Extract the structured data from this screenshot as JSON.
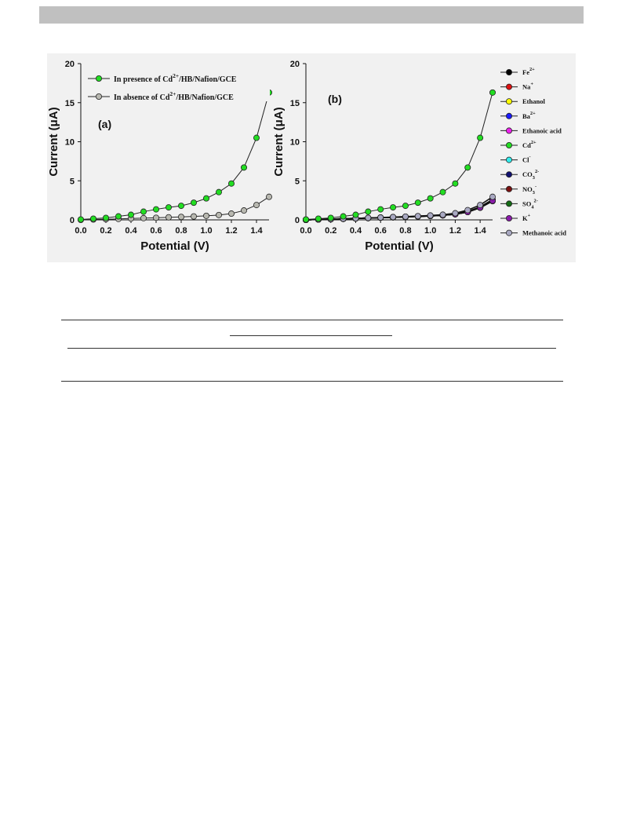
{
  "chart_data": [
    {
      "type": "line",
      "panel_label": "(a)",
      "xlabel": "Potential (V)",
      "ylabel": "Current (μA)",
      "xlim": [
        0,
        1.5
      ],
      "ylim": [
        0,
        20
      ],
      "xticks": [
        "0.0",
        "0.2",
        "0.4",
        "0.6",
        "0.8",
        "1.0",
        "1.2",
        "1.4"
      ],
      "yticks": [
        "0",
        "5",
        "10",
        "15",
        "20"
      ],
      "grid": false,
      "legend_position": "top-left",
      "x": [
        0,
        0.1,
        0.2,
        0.3,
        0.4,
        0.5,
        0.6,
        0.7,
        0.8,
        0.9,
        1.0,
        1.1,
        1.2,
        1.3,
        1.4,
        1.5
      ],
      "series": [
        {
          "name": "In presence of Cd2+/HB/Nafion/GCE",
          "name_parts": {
            "pre": "In presence of Cd",
            "sup": "2+",
            "post": "/HB/Nafion/GCE"
          },
          "color": "#22dd22",
          "values": [
            0.05,
            0.15,
            0.25,
            0.45,
            0.65,
            1.05,
            1.35,
            1.6,
            1.8,
            2.2,
            2.75,
            3.55,
            4.65,
            6.7,
            10.5,
            16.3
          ]
        },
        {
          "name": "In absence of Cd2+/HB/Nafion/GCE",
          "name_parts": {
            "pre": "In absence of Cd",
            "sup": "2+",
            "post": "/HB/Nafion/GCE"
          },
          "color": "#b8b8b0",
          "values": [
            0.0,
            0.05,
            0.08,
            0.12,
            0.17,
            0.22,
            0.27,
            0.33,
            0.38,
            0.44,
            0.52,
            0.62,
            0.8,
            1.2,
            1.9,
            2.95
          ]
        }
      ]
    },
    {
      "type": "line",
      "panel_label": "(b)",
      "xlabel": "Potential (V)",
      "ylabel": "Current (μA)",
      "xlim": [
        0,
        1.5
      ],
      "ylim": [
        0,
        20
      ],
      "xticks": [
        "0.0",
        "0.2",
        "0.4",
        "0.6",
        "0.8",
        "1.0",
        "1.2",
        "1.4"
      ],
      "yticks": [
        "0",
        "5",
        "10",
        "15",
        "20"
      ],
      "grid": false,
      "legend_position": "right",
      "x": [
        0,
        0.1,
        0.2,
        0.3,
        0.4,
        0.5,
        0.6,
        0.7,
        0.8,
        0.9,
        1.0,
        1.1,
        1.2,
        1.3,
        1.4,
        1.5
      ],
      "series": [
        {
          "name": "Fe2+",
          "name_parts": {
            "pre": "Fe",
            "sup": "2+"
          },
          "color": "#000000",
          "values": [
            0.0,
            0.06,
            0.1,
            0.14,
            0.19,
            0.24,
            0.29,
            0.34,
            0.39,
            0.45,
            0.52,
            0.6,
            0.75,
            1.05,
            1.6,
            2.5
          ]
        },
        {
          "name": "Na+",
          "name_parts": {
            "pre": "Na",
            "sup": "+"
          },
          "color": "#dd1111",
          "values": [
            0.0,
            0.05,
            0.09,
            0.13,
            0.18,
            0.23,
            0.28,
            0.33,
            0.38,
            0.44,
            0.5,
            0.58,
            0.72,
            1.0,
            1.55,
            2.4
          ]
        },
        {
          "name": "Ethanol",
          "name_parts": {
            "pre": "Ethanol"
          },
          "color": "#ffff00",
          "values": [
            0.0,
            0.05,
            0.09,
            0.13,
            0.18,
            0.23,
            0.28,
            0.33,
            0.38,
            0.44,
            0.5,
            0.58,
            0.72,
            1.02,
            1.58,
            2.45
          ]
        },
        {
          "name": "Ba2+",
          "name_parts": {
            "pre": "Ba",
            "sup": "2+"
          },
          "color": "#1a1aff",
          "values": [
            0.0,
            0.06,
            0.1,
            0.14,
            0.19,
            0.24,
            0.29,
            0.34,
            0.39,
            0.45,
            0.52,
            0.6,
            0.74,
            1.04,
            1.62,
            2.55
          ]
        },
        {
          "name": "Ethanoic acid",
          "name_parts": {
            "pre": "Ethanoic acid"
          },
          "color": "#ee22ee",
          "values": [
            0.0,
            0.05,
            0.09,
            0.13,
            0.18,
            0.23,
            0.28,
            0.33,
            0.38,
            0.44,
            0.51,
            0.59,
            0.73,
            1.03,
            1.6,
            2.5
          ]
        },
        {
          "name": "Cd2+",
          "name_parts": {
            "pre": "Cd",
            "sup": "2+"
          },
          "color": "#22dd22",
          "values": [
            0.05,
            0.15,
            0.25,
            0.45,
            0.65,
            1.05,
            1.35,
            1.6,
            1.8,
            2.2,
            2.75,
            3.55,
            4.65,
            6.7,
            10.5,
            16.3
          ]
        },
        {
          "name": "Cl-",
          "name_parts": {
            "pre": "Cl",
            "sup": "-"
          },
          "color": "#33eeee",
          "values": [
            0.0,
            0.05,
            0.09,
            0.13,
            0.18,
            0.23,
            0.28,
            0.33,
            0.38,
            0.44,
            0.5,
            0.58,
            0.72,
            1.0,
            1.56,
            2.42
          ]
        },
        {
          "name": "CO32-",
          "name_parts": {
            "pre": "CO",
            "sub": "3",
            "sup": "2-"
          },
          "color": "#101070",
          "values": [
            0.0,
            0.06,
            0.1,
            0.14,
            0.19,
            0.24,
            0.29,
            0.34,
            0.4,
            0.46,
            0.53,
            0.62,
            0.77,
            1.08,
            1.66,
            2.6
          ]
        },
        {
          "name": "NO3-",
          "name_parts": {
            "pre": "NO",
            "sub": "3",
            "sup": "-"
          },
          "color": "#7a1010",
          "values": [
            0.0,
            0.05,
            0.09,
            0.13,
            0.18,
            0.23,
            0.28,
            0.33,
            0.38,
            0.44,
            0.51,
            0.59,
            0.73,
            1.02,
            1.58,
            2.48
          ]
        },
        {
          "name": "SO42-",
          "name_parts": {
            "pre": "SO",
            "sub": "4",
            "sup": "2-"
          },
          "color": "#136b13",
          "values": [
            0.0,
            0.06,
            0.1,
            0.14,
            0.19,
            0.24,
            0.29,
            0.34,
            0.39,
            0.45,
            0.52,
            0.6,
            0.75,
            1.05,
            1.62,
            2.52
          ]
        },
        {
          "name": "K+",
          "name_parts": {
            "pre": "K",
            "sup": "+"
          },
          "color": "#8a1aaa",
          "values": [
            0.0,
            0.05,
            0.09,
            0.13,
            0.18,
            0.23,
            0.28,
            0.33,
            0.38,
            0.44,
            0.5,
            0.58,
            0.72,
            1.01,
            1.57,
            2.45
          ]
        },
        {
          "name": "Methanoic acid",
          "name_parts": {
            "pre": "Methanoic acid"
          },
          "color": "#a9a9c2",
          "values": [
            0.0,
            0.06,
            0.1,
            0.15,
            0.2,
            0.25,
            0.3,
            0.36,
            0.42,
            0.48,
            0.56,
            0.66,
            0.85,
            1.25,
            1.9,
            2.95
          ]
        }
      ]
    }
  ]
}
